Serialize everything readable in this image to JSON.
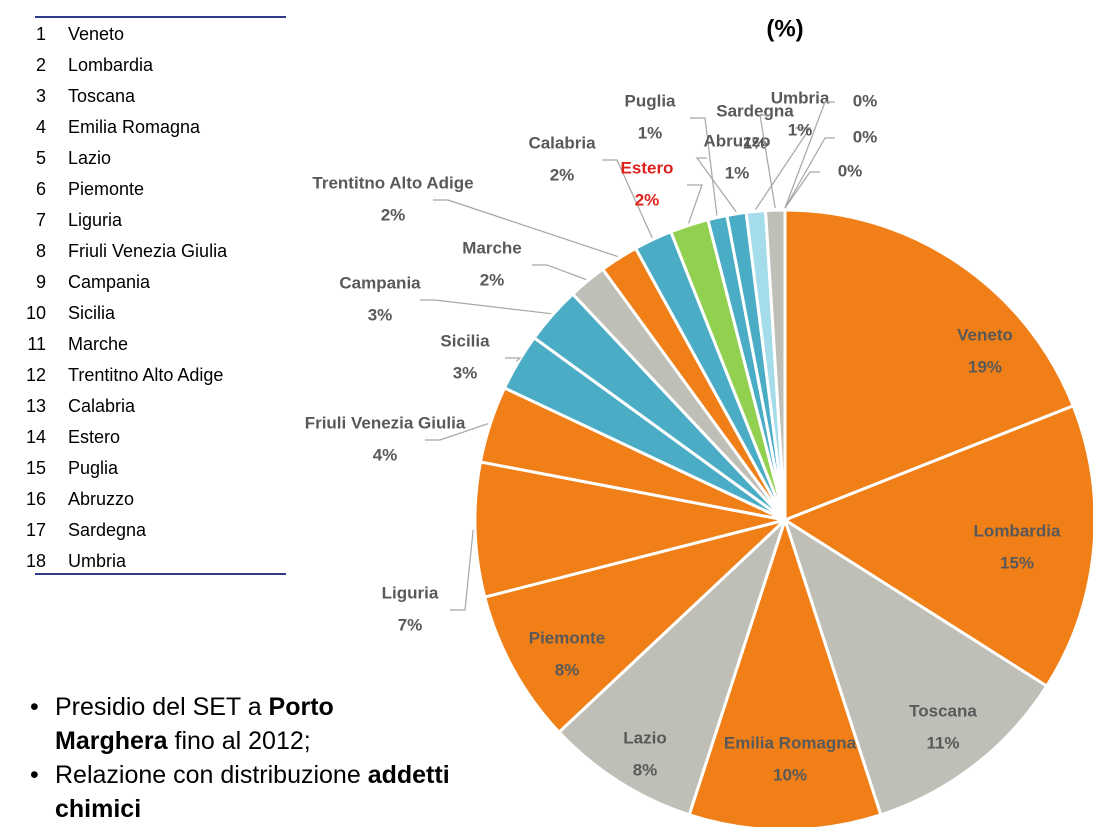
{
  "list": [
    {
      "rank": 1,
      "name": "Veneto"
    },
    {
      "rank": 2,
      "name": "Lombardia"
    },
    {
      "rank": 3,
      "name": "Toscana"
    },
    {
      "rank": 4,
      "name": "Emilia Romagna"
    },
    {
      "rank": 5,
      "name": "Lazio"
    },
    {
      "rank": 6,
      "name": "Piemonte"
    },
    {
      "rank": 7,
      "name": "Liguria"
    },
    {
      "rank": 8,
      "name": "Friuli Venezia Giulia"
    },
    {
      "rank": 9,
      "name": "Campania"
    },
    {
      "rank": 10,
      "name": "Sicilia"
    },
    {
      "rank": 11,
      "name": "Marche"
    },
    {
      "rank": 12,
      "name": "Trentitno Alto Adige"
    },
    {
      "rank": 13,
      "name": "Calabria"
    },
    {
      "rank": 14,
      "name": "Estero"
    },
    {
      "rank": 15,
      "name": "Puglia"
    },
    {
      "rank": 16,
      "name": "Abruzzo"
    },
    {
      "rank": 17,
      "name": "Sardegna"
    },
    {
      "rank": 18,
      "name": "Umbria"
    }
  ],
  "bullets": [
    [
      {
        "text": "Presidio del SET a "
      },
      {
        "text": "Porto Marghera",
        "bold": true
      },
      {
        "text": " fino al 2012;"
      }
    ],
    [
      {
        "text": "Relazione con distribuzione "
      },
      {
        "text": "addetti chimici",
        "bold": true
      }
    ]
  ],
  "chart_data": {
    "type": "pie",
    "title": "(%)",
    "categories": [
      "Veneto",
      "Lombardia",
      "Toscana",
      "Emilia Romagna",
      "Lazio",
      "Piemonte",
      "Liguria",
      "Friuli Venezia Giulia",
      "Sicilia",
      "Campania",
      "Marche",
      "Trentitno Alto Adige",
      "Calabria",
      "Estero",
      "Puglia",
      "Abruzzo",
      "Sardegna",
      "Umbria",
      null,
      null,
      null
    ],
    "values": [
      19,
      15,
      11,
      10,
      8,
      8,
      7,
      4,
      3,
      3,
      2,
      2,
      2,
      2,
      1,
      1,
      1,
      1,
      0,
      0,
      0
    ],
    "value_labels": [
      "19%",
      "15%",
      "11%",
      "10%",
      "8%",
      "8%",
      "7%",
      "4%",
      "3%",
      "3%",
      "2%",
      "2%",
      "2%",
      "2%",
      "1%",
      "1%",
      "1%",
      "1%",
      "0%",
      "0%",
      "0%"
    ],
    "colors": [
      "#f07f17",
      "#f07f17",
      "#bfbfb8",
      "#f07f17",
      "#bfbfb8",
      "#f07f17",
      "#f07f17",
      "#f07f17",
      "#4bacc6",
      "#4bacc6",
      "#bfbfb8",
      "#f07f17",
      "#4bacc6",
      "#92d050",
      "#4bacc6",
      "#4bacc6",
      "#a5dcea",
      "#bfbfb8",
      "#bfbfb8",
      "#bfbfb8",
      "#bfbfb8"
    ],
    "highlight": 13,
    "highlight_color": "#e0201b"
  }
}
